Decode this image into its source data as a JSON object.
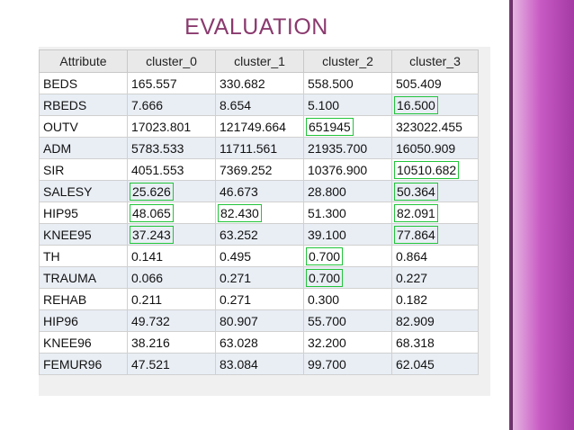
{
  "slide": {
    "title": "EVALUATION"
  },
  "table": {
    "headers": [
      "Attribute",
      "cluster_0",
      "cluster_1",
      "cluster_2",
      "cluster_3"
    ],
    "rows": [
      [
        "BEDS",
        "165.557",
        "330.682",
        "558.500",
        "505.409"
      ],
      [
        "RBEDS",
        "7.666",
        "8.654",
        "5.100",
        "16.500"
      ],
      [
        "OUTV",
        "17023.801",
        "121749.664",
        "651945",
        "323022.455"
      ],
      [
        "ADM",
        "5783.533",
        "11711.561",
        "21935.700",
        "16050.909"
      ],
      [
        "SIR",
        "4051.553",
        "7369.252",
        "10376.900",
        "10510.682"
      ],
      [
        "SALESY",
        "25.626",
        "46.673",
        "28.800",
        "50.364"
      ],
      [
        "HIP95",
        "48.065",
        "82.430",
        "51.300",
        "82.091"
      ],
      [
        "KNEE95",
        "37.243",
        "63.252",
        "39.100",
        "77.864"
      ],
      [
        "TH",
        "0.141",
        "0.495",
        "0.700",
        "0.864"
      ],
      [
        "TRAUMA",
        "0.066",
        "0.271",
        "0.700",
        "0.227"
      ],
      [
        "REHAB",
        "0.211",
        "0.271",
        "0.300",
        "0.182"
      ],
      [
        "HIP96",
        "49.732",
        "80.907",
        "55.700",
        "82.909"
      ],
      [
        "KNEE96",
        "38.216",
        "63.028",
        "32.200",
        "68.318"
      ],
      [
        "FEMUR96",
        "47.521",
        "83.084",
        "99.700",
        "62.045"
      ]
    ],
    "highlighted_cells": [
      [
        1,
        4
      ],
      [
        2,
        3
      ],
      [
        4,
        4
      ],
      [
        5,
        1
      ],
      [
        5,
        4
      ],
      [
        6,
        1
      ],
      [
        6,
        2
      ],
      [
        6,
        4
      ],
      [
        7,
        1
      ],
      [
        7,
        4
      ],
      [
        8,
        3
      ],
      [
        9,
        3
      ]
    ],
    "highlight_color": "#22c43a"
  },
  "colors": {
    "title": "#8a3a6e",
    "side_band": "#b44ab0"
  }
}
